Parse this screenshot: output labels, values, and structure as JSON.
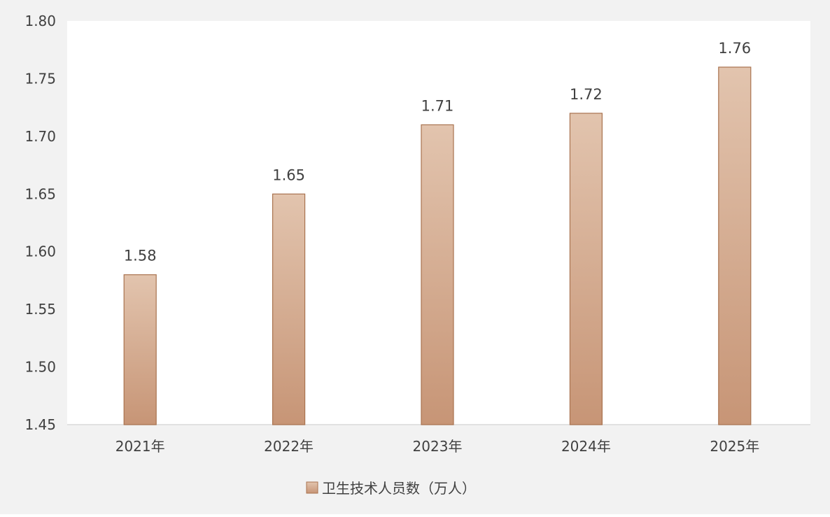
{
  "chart_data": {
    "type": "bar",
    "categories": [
      "2021年",
      "2022年",
      "2023年",
      "2024年",
      "2025年"
    ],
    "series": [
      {
        "name": "卫生技术人员数（万人）",
        "values": [
          1.58,
          1.65,
          1.71,
          1.72,
          1.76
        ],
        "data_labels": [
          "1.58",
          "1.65",
          "1.71",
          "1.72",
          "1.76"
        ]
      }
    ],
    "ylim": [
      1.45,
      1.8
    ],
    "yticks": [
      "1.45",
      "1.50",
      "1.55",
      "1.60",
      "1.65",
      "1.70",
      "1.75",
      "1.80"
    ],
    "title": "",
    "xlabel": "",
    "ylabel": "",
    "legend_position": "bottom-center",
    "grid": false
  },
  "colors": {
    "outer_background": "#f2f2f2",
    "plot_background": "#ffffff",
    "bar_top": "#e2c4ae",
    "bar_bottom": "#c79576",
    "bar_border": "#a9734f",
    "axis_line": "#d9d9d9",
    "text": "#404040"
  }
}
